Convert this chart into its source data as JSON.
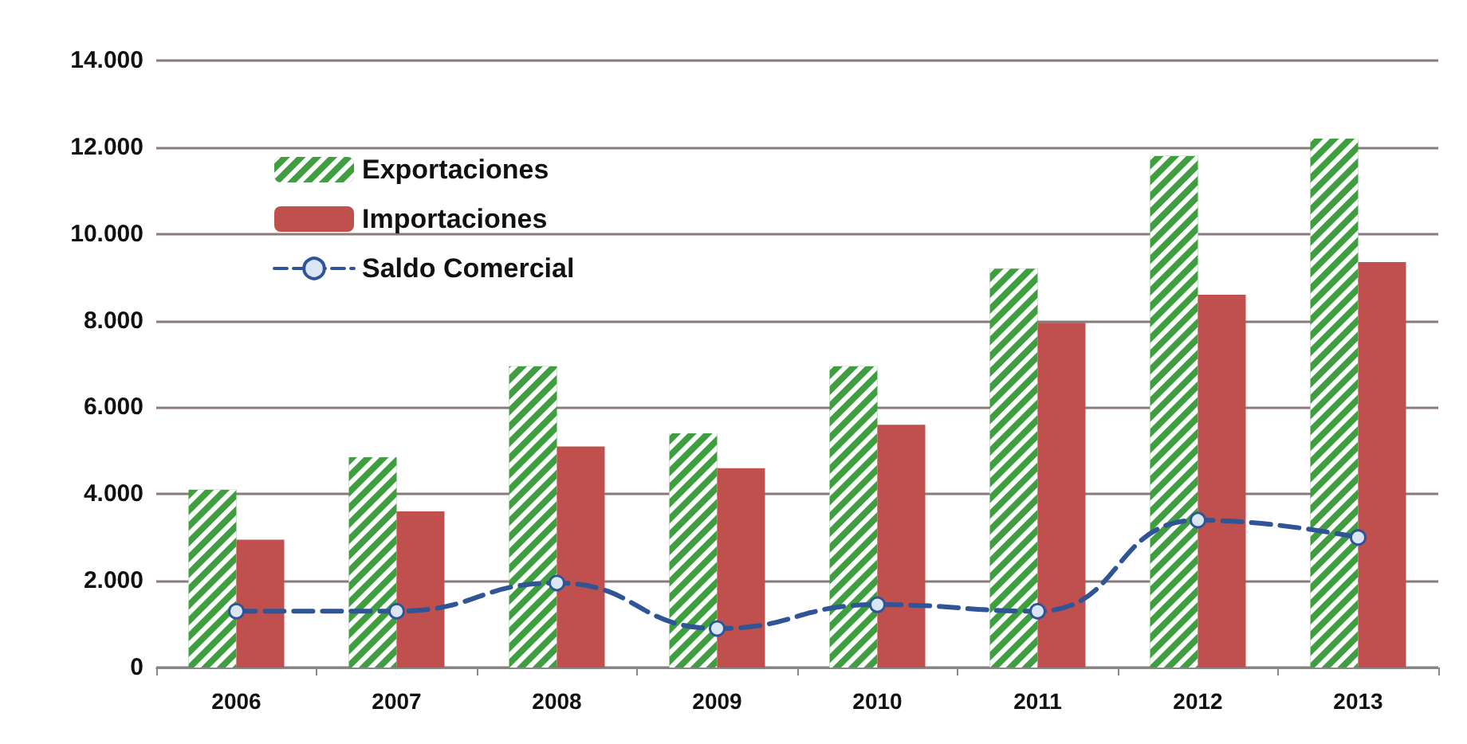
{
  "chart_data": {
    "type": "bar",
    "categories": [
      "2006",
      "2007",
      "2008",
      "2009",
      "2010",
      "2011",
      "2012",
      "2013"
    ],
    "series": [
      {
        "name": "Exportaciones",
        "color": "#3f9e3f",
        "values": [
          4100,
          4850,
          6950,
          5400,
          6950,
          9200,
          11800,
          12200
        ]
      },
      {
        "name": "Importaciones",
        "color": "#c0504d",
        "values": [
          2950,
          3600,
          5100,
          4600,
          5600,
          7950,
          8600,
          9350
        ]
      },
      {
        "name": "Saldo Comercial",
        "type": "line",
        "color": "#2f5597",
        "marker": "circle",
        "line_style": "dashed",
        "values": [
          1300,
          1300,
          1950,
          900,
          1450,
          1300,
          3400,
          3000
        ]
      }
    ],
    "ylim": [
      0,
      14000
    ],
    "yticks": [
      0,
      {
        "value": 2000,
        "label": "2.000"
      },
      {
        "value": 4000,
        "label": "4.000"
      },
      {
        "value": 6000,
        "label": "6.000"
      },
      {
        "value": 8000,
        "label": "8.000"
      },
      {
        "value": 10000,
        "label": "10.000"
      },
      {
        "value": 12000,
        "label": "12.000"
      },
      {
        "value": 14000,
        "label": "14.000"
      }
    ],
    "grid": "y",
    "legend": "top left"
  }
}
